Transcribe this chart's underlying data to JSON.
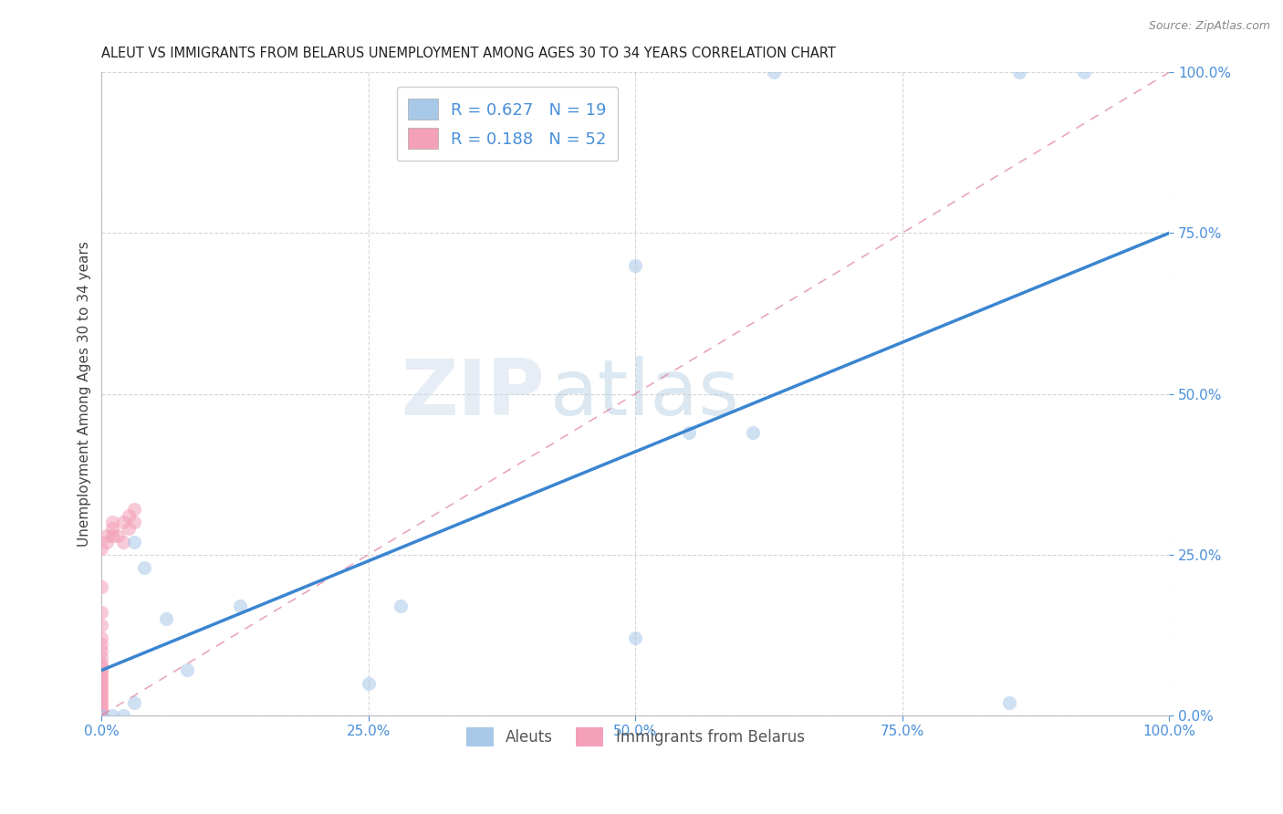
{
  "title": "ALEUT VS IMMIGRANTS FROM BELARUS UNEMPLOYMENT AMONG AGES 30 TO 34 YEARS CORRELATION CHART",
  "source": "Source: ZipAtlas.com",
  "ylabel": "Unemployment Among Ages 30 to 34 years",
  "aleut_R": 0.627,
  "aleut_N": 19,
  "belarus_R": 0.188,
  "belarus_N": 52,
  "aleut_color": "#a8c8e8",
  "aleut_line_color": "#3a85d0",
  "belarus_color": "#f4a0b8",
  "belarus_line_color": "#e080a0",
  "watermark_zip": "ZIP",
  "watermark_atlas": "atlas",
  "aleut_x": [
    0.0,
    0.03,
    0.04,
    0.03,
    0.06,
    0.55,
    0.61,
    0.28,
    0.5,
    0.85,
    0.13,
    0.5,
    0.86,
    0.01,
    0.02,
    0.08,
    0.25,
    0.63,
    0.92
  ],
  "aleut_y": [
    0.0,
    0.27,
    0.23,
    0.02,
    0.15,
    0.44,
    0.44,
    0.17,
    0.12,
    0.02,
    0.17,
    0.7,
    1.0,
    0.0,
    0.0,
    0.07,
    0.05,
    1.0,
    1.0
  ],
  "belarus_x": [
    0.0,
    0.0,
    0.0,
    0.0,
    0.0,
    0.0,
    0.0,
    0.0,
    0.0,
    0.0,
    0.0,
    0.0,
    0.0,
    0.0,
    0.0,
    0.0,
    0.0,
    0.0,
    0.0,
    0.0,
    0.0,
    0.0,
    0.0,
    0.0,
    0.0,
    0.0,
    0.0,
    0.0,
    0.0,
    0.0,
    0.0,
    0.0,
    0.0,
    0.0,
    0.0,
    0.0,
    0.0,
    0.0,
    0.0,
    0.0,
    0.005,
    0.005,
    0.01,
    0.01,
    0.01,
    0.015,
    0.02,
    0.02,
    0.025,
    0.025,
    0.03,
    0.03
  ],
  "belarus_y": [
    0.0,
    0.0,
    0.0,
    0.0,
    0.0,
    0.0,
    0.0,
    0.0,
    0.0,
    0.0,
    0.0,
    0.0,
    0.0,
    0.0,
    0.0,
    0.0,
    0.005,
    0.01,
    0.015,
    0.02,
    0.025,
    0.03,
    0.035,
    0.04,
    0.045,
    0.05,
    0.055,
    0.06,
    0.065,
    0.07,
    0.075,
    0.08,
    0.09,
    0.1,
    0.11,
    0.12,
    0.14,
    0.16,
    0.2,
    0.26,
    0.27,
    0.28,
    0.28,
    0.3,
    0.29,
    0.28,
    0.27,
    0.3,
    0.29,
    0.31,
    0.3,
    0.32
  ],
  "xlim": [
    0.0,
    1.0
  ],
  "ylim": [
    0.0,
    1.0
  ],
  "xticks": [
    0.0,
    0.25,
    0.5,
    0.75,
    1.0
  ],
  "yticks": [
    0.0,
    0.25,
    0.5,
    0.75,
    1.0
  ],
  "xticklabels": [
    "0.0%",
    "25.0%",
    "50.0%",
    "75.0%",
    "100.0%"
  ],
  "yticklabels": [
    "0.0%",
    "25.0%",
    "50.0%",
    "75.0%",
    "100.0%"
  ],
  "legend_aleut_label": "Aleuts",
  "legend_belarus_label": "Immigrants from Belarus",
  "title_color": "#222222",
  "axis_label_color": "#444444",
  "tick_color": "#4a90d9",
  "grid_color": "#cccccc",
  "background_color": "#ffffff",
  "dot_size": 120,
  "dot_alpha": 0.55,
  "line_width": 2.5,
  "aleut_line_x0": 0.0,
  "aleut_line_y0": 0.07,
  "aleut_line_x1": 1.0,
  "aleut_line_y1": 0.75,
  "dash_line_x0": 0.0,
  "dash_line_y0": 0.0,
  "dash_line_x1": 1.0,
  "dash_line_y1": 1.0
}
